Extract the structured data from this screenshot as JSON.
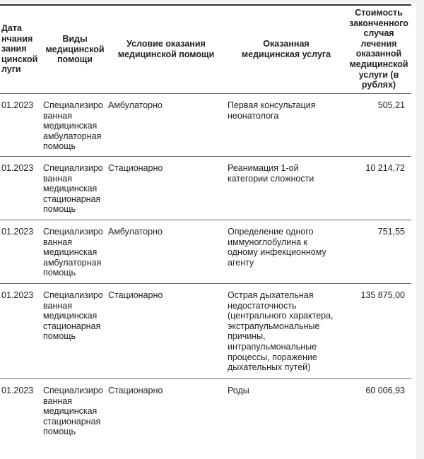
{
  "table": {
    "headers": [
      "Дата\nнчания\nзания\nцинской\nлуги",
      "Виды\nмедицинской\nпомощи",
      "Условие оказания\nмедицинской помощи",
      "Оказанная\nмедицинская услуга",
      "Стоимость\nзаконченного\nслучая\nлечения\nоказанной\nмедицинской\nуслуги (в\nрублях)"
    ],
    "rows": [
      {
        "date": "01.2023",
        "type": "Специализиро\nванная\nмедицинская\nамбулаторная\nпомощь",
        "condition": "Амбулаторно",
        "service": "Первая консультация\nнеонатолога",
        "cost": "505,21"
      },
      {
        "date": "01.2023",
        "type": "Специализиро\nванная\nмедицинская\nстационарная\nпомощь",
        "condition": "Стационарно",
        "service": "Реанимация 1-ой\nкатегории сложности",
        "cost": "10 214,72"
      },
      {
        "date": "01.2023",
        "type": "Специализиро\nванная\nмедицинская\nамбулаторная\nпомощь",
        "condition": "Амбулаторно",
        "service": "Определение одного\nиммуноглобулина к\nодному инфекционному\nагенту",
        "cost": "751,55"
      },
      {
        "date": "01.2023",
        "type": "Специализиро\nванная\nмедицинская\nстационарная\nпомощь",
        "condition": "Стационарно",
        "service": "Острая дыхательная\nнедостаточность\n(центрального характера,\nэкстрапульмональные\nпричины,\nинтрапульмональные\nпроцессы, поражение\nдыхательных путей)",
        "cost": "135 875,00"
      },
      {
        "date": "01.2023",
        "type": "Специализиро\nванная\nмедицинская\nстационарная\nпомощь",
        "condition": "Стационарно",
        "service": "Роды",
        "cost": "60 006,93"
      }
    ]
  }
}
